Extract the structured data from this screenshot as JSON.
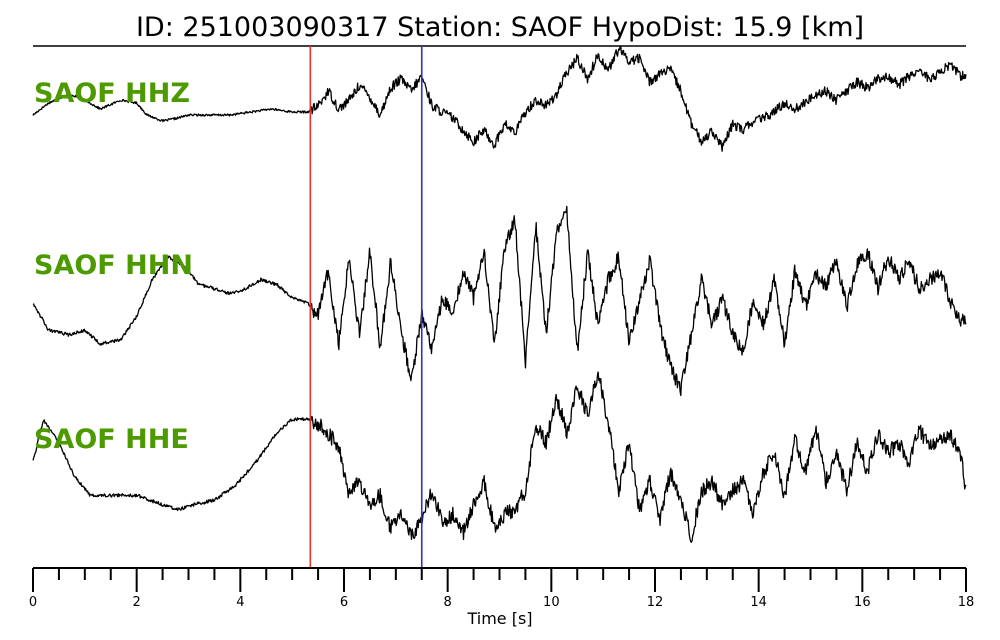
{
  "title": "ID: 251003090317   Station: SAOF   HypoDist:    15.9 [km]",
  "chart_data": {
    "type": "line",
    "xlabel": "Time [s]",
    "xlim": [
      0,
      18
    ],
    "x_major_ticks": [
      0,
      2,
      4,
      6,
      8,
      10,
      12,
      14,
      16,
      18
    ],
    "x_minor_step": 0.5,
    "grid": false,
    "label_color": "#4c9a00",
    "picks": [
      {
        "time": 5.35,
        "color": "#e8342c"
      },
      {
        "time": 7.5,
        "color": "#2a35c8"
      }
    ],
    "series": [
      {
        "name": "SAOF HHZ",
        "color": "#000000",
        "t": [
          0.0,
          0.3,
          0.7,
          1.0,
          1.3,
          1.7,
          2.0,
          2.2,
          2.5,
          2.8,
          3.0,
          3.4,
          3.8,
          4.2,
          4.6,
          5.0,
          5.3,
          5.5,
          5.7,
          5.9,
          6.1,
          6.3,
          6.5,
          6.7,
          6.9,
          7.1,
          7.3,
          7.5,
          7.7,
          7.9,
          8.1,
          8.3,
          8.5,
          8.7,
          8.9,
          9.1,
          9.3,
          9.5,
          9.7,
          9.9,
          10.1,
          10.3,
          10.5,
          10.7,
          10.9,
          11.1,
          11.3,
          11.5,
          11.7,
          11.9,
          12.1,
          12.3,
          12.5,
          12.7,
          12.9,
          13.1,
          13.3,
          13.5,
          13.7,
          13.9,
          14.1,
          14.3,
          14.5,
          14.7,
          14.9,
          15.1,
          15.3,
          15.5,
          15.7,
          15.9,
          16.1,
          16.3,
          16.5,
          16.7,
          16.9,
          17.1,
          17.3,
          17.5,
          17.7,
          17.9,
          18.0
        ],
        "values": [
          -0.05,
          0.15,
          0.3,
          0.2,
          0.05,
          0.2,
          0.15,
          -0.05,
          -0.15,
          -0.1,
          -0.05,
          -0.05,
          -0.05,
          0.0,
          0.05,
          0.0,
          0.0,
          0.1,
          0.35,
          0.05,
          0.2,
          0.45,
          0.25,
          -0.05,
          0.4,
          0.55,
          0.35,
          0.6,
          0.1,
          0.0,
          -0.1,
          -0.3,
          -0.5,
          -0.3,
          -0.55,
          -0.2,
          -0.35,
          0.0,
          0.2,
          0.1,
          0.3,
          0.65,
          0.9,
          0.55,
          0.95,
          0.7,
          1.05,
          0.85,
          0.9,
          0.5,
          0.65,
          0.7,
          0.35,
          -0.2,
          -0.5,
          -0.3,
          -0.6,
          -0.2,
          -0.3,
          -0.15,
          -0.1,
          0.0,
          0.15,
          0.05,
          0.15,
          0.3,
          0.35,
          0.2,
          0.35,
          0.5,
          0.4,
          0.55,
          0.6,
          0.45,
          0.6,
          0.7,
          0.55,
          0.65,
          0.8,
          0.6,
          0.6
        ]
      },
      {
        "name": "SAOF HHN",
        "color": "#000000",
        "t": [
          0.0,
          0.3,
          0.7,
          1.0,
          1.3,
          1.7,
          2.0,
          2.3,
          2.6,
          2.9,
          3.2,
          3.5,
          3.8,
          4.1,
          4.4,
          4.7,
          5.0,
          5.3,
          5.5,
          5.7,
          5.9,
          6.1,
          6.3,
          6.5,
          6.7,
          6.9,
          7.1,
          7.3,
          7.5,
          7.7,
          7.9,
          8.1,
          8.3,
          8.5,
          8.7,
          8.9,
          9.1,
          9.3,
          9.5,
          9.7,
          9.9,
          10.1,
          10.3,
          10.5,
          10.7,
          10.9,
          11.1,
          11.3,
          11.5,
          11.7,
          11.9,
          12.1,
          12.3,
          12.5,
          12.7,
          12.9,
          13.1,
          13.3,
          13.5,
          13.7,
          13.9,
          14.1,
          14.3,
          14.5,
          14.7,
          14.9,
          15.1,
          15.3,
          15.5,
          15.7,
          15.9,
          16.1,
          16.3,
          16.5,
          16.7,
          16.9,
          17.1,
          17.3,
          17.5,
          17.7,
          17.9,
          18.0
        ],
        "values": [
          -0.05,
          -0.35,
          -0.4,
          -0.35,
          -0.5,
          -0.45,
          -0.2,
          0.2,
          0.45,
          0.35,
          0.15,
          0.1,
          0.05,
          0.1,
          0.2,
          0.15,
          0.0,
          -0.05,
          -0.2,
          0.3,
          -0.5,
          0.45,
          -0.4,
          0.5,
          -0.55,
          0.4,
          -0.35,
          -0.9,
          -0.15,
          -0.55,
          0.0,
          -0.2,
          0.3,
          0.0,
          0.5,
          -0.5,
          0.55,
          0.85,
          -0.7,
          0.8,
          -0.4,
          0.7,
          0.95,
          -0.6,
          0.5,
          -0.3,
          0.2,
          0.45,
          -0.5,
          0.0,
          0.4,
          -0.3,
          -0.75,
          -1.0,
          -0.4,
          0.2,
          -0.3,
          0.0,
          -0.4,
          -0.6,
          0.0,
          -0.3,
          0.2,
          -0.5,
          0.3,
          -0.1,
          0.25,
          0.15,
          0.4,
          -0.1,
          0.35,
          0.5,
          0.1,
          0.45,
          0.2,
          0.4,
          0.1,
          0.2,
          0.3,
          -0.05,
          -0.25,
          -0.25
        ]
      },
      {
        "name": "SAOF HHE",
        "color": "#000000",
        "t": [
          0.0,
          0.2,
          0.5,
          0.8,
          1.1,
          1.5,
          2.0,
          2.5,
          2.8,
          3.1,
          3.5,
          3.9,
          4.3,
          4.7,
          5.0,
          5.3,
          5.5,
          5.7,
          5.9,
          6.1,
          6.3,
          6.5,
          6.7,
          6.9,
          7.1,
          7.3,
          7.5,
          7.7,
          7.9,
          8.1,
          8.3,
          8.5,
          8.7,
          8.9,
          9.1,
          9.3,
          9.5,
          9.7,
          9.9,
          10.1,
          10.3,
          10.5,
          10.7,
          10.9,
          11.1,
          11.3,
          11.5,
          11.7,
          11.9,
          12.1,
          12.3,
          12.5,
          12.7,
          12.9,
          13.1,
          13.3,
          13.5,
          13.7,
          13.9,
          14.1,
          14.3,
          14.5,
          14.7,
          14.9,
          15.1,
          15.3,
          15.5,
          15.7,
          15.9,
          16.1,
          16.3,
          16.5,
          16.7,
          16.9,
          17.1,
          17.3,
          17.5,
          17.7,
          17.9,
          18.0
        ],
        "values": [
          0.0,
          0.45,
          0.2,
          -0.15,
          -0.35,
          -0.35,
          -0.35,
          -0.45,
          -0.5,
          -0.45,
          -0.4,
          -0.25,
          0.0,
          0.3,
          0.45,
          0.45,
          0.4,
          0.3,
          0.15,
          -0.35,
          -0.2,
          -0.45,
          -0.35,
          -0.7,
          -0.5,
          -0.8,
          -0.6,
          -0.3,
          -0.65,
          -0.55,
          -0.75,
          -0.45,
          -0.2,
          -0.7,
          -0.55,
          -0.5,
          -0.3,
          0.4,
          0.2,
          0.7,
          0.3,
          0.8,
          0.5,
          0.95,
          0.4,
          -0.3,
          0.2,
          -0.5,
          -0.2,
          -0.6,
          -0.1,
          -0.4,
          -0.8,
          -0.3,
          -0.2,
          -0.45,
          -0.3,
          -0.2,
          -0.55,
          -0.1,
          0.1,
          -0.35,
          0.25,
          -0.1,
          0.35,
          -0.2,
          0.1,
          -0.3,
          0.2,
          -0.1,
          0.3,
          0.1,
          0.2,
          0.0,
          0.35,
          0.15,
          0.25,
          0.3,
          0.05,
          -0.3
        ]
      }
    ]
  }
}
